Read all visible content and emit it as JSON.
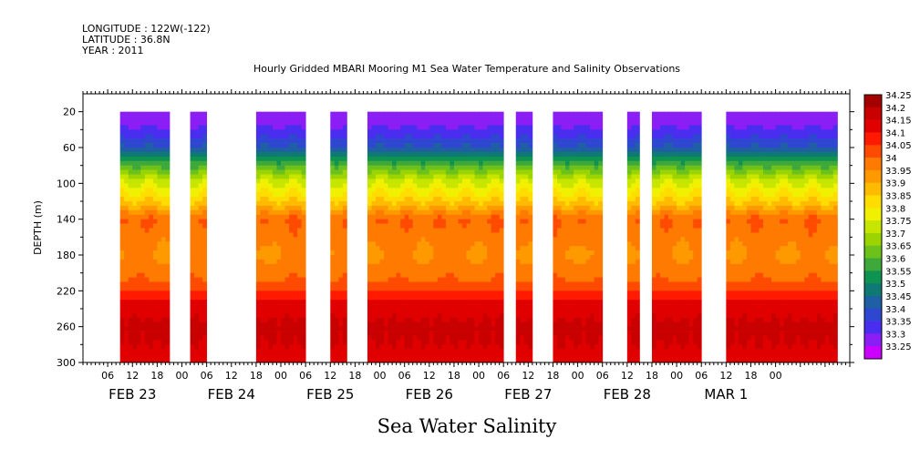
{
  "header": {
    "longitude": "LONGITUDE : 122W(-122)",
    "latitude": "LATITUDE : 36.8N",
    "year": "YEAR : 2011"
  },
  "chart_data": {
    "type": "heatmap",
    "title": "Hourly Gridded MBARI Mooring M1 Sea Water Temperature and Salinity Observations",
    "subtitle": "Sea Water Salinity",
    "ylabel": "DEPTH (m)",
    "y_ticks": [
      20,
      60,
      100,
      140,
      180,
      220,
      260,
      300
    ],
    "ylim": [
      300,
      0
    ],
    "hour_ticks": [
      "06",
      "12",
      "18",
      "00",
      "06",
      "12",
      "18",
      "00",
      "06",
      "12",
      "18",
      "00",
      "06",
      "12",
      "18",
      "00",
      "06",
      "12",
      "18",
      "00",
      "06",
      "12",
      "18",
      "00",
      "06",
      "12",
      "18",
      "00"
    ],
    "day_labels": [
      "FEB 23",
      "FEB 24",
      "FEB 25",
      "FEB 26",
      "FEB 27",
      "FEB 28",
      "MAR  1"
    ],
    "colorbar_levels": [
      "34.25",
      "34.2",
      "34.15",
      "34.1",
      "34.05",
      "34",
      "33.95",
      "33.9",
      "33.85",
      "33.8",
      "33.75",
      "33.7",
      "33.65",
      "33.6",
      "33.55",
      "33.5",
      "33.45",
      "33.4",
      "33.35",
      "33.3",
      "33.25"
    ],
    "colors": [
      "#a50000",
      "#c80000",
      "#e00000",
      "#ff1a00",
      "#ff4b00",
      "#ff7a00",
      "#ff9900",
      "#ffbb00",
      "#ffdd00",
      "#f0f000",
      "#c6e600",
      "#9bd400",
      "#6cc21a",
      "#3ea93a",
      "#0f9350",
      "#0f7a73",
      "#1f5fa3",
      "#2f46d1",
      "#4a2ef0",
      "#8a1ef5",
      "#cc00ff"
    ],
    "data_segments_hours": [
      [
        9,
        21
      ],
      [
        26,
        30
      ],
      [
        42,
        54
      ],
      [
        60,
        64
      ],
      [
        69,
        102
      ],
      [
        105,
        109
      ],
      [
        114,
        126
      ],
      [
        132,
        135
      ],
      [
        138,
        150
      ],
      [
        156,
        183
      ]
    ],
    "depth_profile": [
      {
        "depth": 20,
        "salinity": 33.3
      },
      {
        "depth": 40,
        "salinity": 33.36
      },
      {
        "depth": 60,
        "salinity": 33.45
      },
      {
        "depth": 80,
        "salinity": 33.65
      },
      {
        "depth": 100,
        "salinity": 33.8
      },
      {
        "depth": 120,
        "salinity": 33.9
      },
      {
        "depth": 140,
        "salinity": 34.05
      },
      {
        "depth": 180,
        "salinity": 34.0
      },
      {
        "depth": 210,
        "salinity": 34.05
      },
      {
        "depth": 230,
        "salinity": 34.15
      },
      {
        "depth": 260,
        "salinity": 34.22
      },
      {
        "depth": 300,
        "salinity": 34.18
      }
    ],
    "hours_total": 186
  }
}
